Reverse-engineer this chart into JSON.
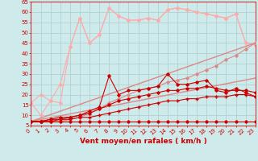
{
  "background_color": "#ceeaea",
  "grid_color": "#aacccc",
  "x_label": "Vent moyen/en rafales ( km/h )",
  "x_min": 0,
  "x_max": 23,
  "y_min": 5,
  "y_max": 65,
  "y_ticks": [
    5,
    10,
    15,
    20,
    25,
    30,
    35,
    40,
    45,
    50,
    55,
    60,
    65
  ],
  "x_ticks": [
    0,
    1,
    2,
    3,
    4,
    5,
    6,
    7,
    8,
    9,
    10,
    11,
    12,
    13,
    14,
    15,
    16,
    17,
    18,
    19,
    20,
    21,
    22,
    23
  ],
  "series": [
    {
      "x": [
        0,
        1,
        2,
        3,
        4,
        5,
        6,
        7,
        8,
        9,
        10,
        11,
        12,
        13,
        14,
        15,
        16,
        17,
        18,
        19,
        20,
        21,
        22,
        23
      ],
      "y": [
        7,
        7,
        7,
        7,
        7,
        7,
        7,
        7,
        7,
        7,
        7,
        7,
        7,
        7,
        7,
        7,
        7,
        7,
        7,
        7,
        7,
        7,
        7,
        7
      ],
      "color": "#cc0000",
      "linewidth": 0.8,
      "marker": "D",
      "markersize": 1.8,
      "zorder": 5
    },
    {
      "x": [
        0,
        1,
        2,
        3,
        4,
        5,
        6,
        7,
        8,
        9,
        10,
        11,
        12,
        13,
        14,
        15,
        16,
        17,
        18,
        19,
        20,
        21,
        22,
        23
      ],
      "y": [
        7,
        7,
        7,
        8,
        8,
        9,
        9,
        10,
        11,
        12,
        13,
        14,
        15,
        16,
        17,
        17,
        18,
        18,
        19,
        19,
        19,
        20,
        20,
        19
      ],
      "color": "#cc0000",
      "linewidth": 0.8,
      "marker": "+",
      "markersize": 3,
      "zorder": 5
    },
    {
      "x": [
        0,
        1,
        2,
        3,
        4,
        5,
        6,
        7,
        8,
        9,
        10,
        11,
        12,
        13,
        14,
        15,
        16,
        17,
        18,
        19,
        20,
        21,
        22,
        23
      ],
      "y": [
        7,
        7,
        8,
        8,
        9,
        10,
        11,
        13,
        15,
        17,
        18,
        19,
        20,
        21,
        22,
        22,
        23,
        23,
        24,
        23,
        22,
        22,
        22,
        21
      ],
      "color": "#cc0000",
      "linewidth": 0.8,
      "marker": "D",
      "markersize": 1.8,
      "zorder": 5
    },
    {
      "x": [
        0,
        1,
        2,
        3,
        4,
        5,
        6,
        7,
        8,
        9,
        10,
        11,
        12,
        13,
        14,
        15,
        16,
        17,
        18,
        19,
        20,
        21,
        22,
        23
      ],
      "y": [
        7,
        7,
        8,
        9,
        9,
        10,
        12,
        14,
        29,
        20,
        22,
        22,
        23,
        24,
        30,
        25,
        25,
        26,
        27,
        22,
        21,
        23,
        21,
        19
      ],
      "color": "#cc0000",
      "linewidth": 0.8,
      "marker": "D",
      "markersize": 1.8,
      "zorder": 4
    },
    {
      "x": [
        0,
        23
      ],
      "y": [
        7,
        45
      ],
      "color": "#dd8888",
      "linewidth": 1.0,
      "marker": null,
      "markersize": 0,
      "zorder": 3
    },
    {
      "x": [
        0,
        23
      ],
      "y": [
        7,
        28
      ],
      "color": "#dd8888",
      "linewidth": 1.0,
      "marker": null,
      "markersize": 0,
      "zorder": 3
    },
    {
      "x": [
        0,
        1,
        2,
        3,
        4,
        5,
        6,
        7,
        8,
        9,
        10,
        11,
        12,
        13,
        14,
        15,
        16,
        17,
        18,
        19,
        20,
        21,
        22,
        23
      ],
      "y": [
        7,
        7,
        7,
        7,
        8,
        9,
        11,
        13,
        16,
        18,
        20,
        22,
        23,
        24,
        26,
        27,
        28,
        30,
        32,
        34,
        37,
        39,
        42,
        45
      ],
      "color": "#dd8888",
      "linewidth": 0.8,
      "marker": "D",
      "markersize": 1.8,
      "zorder": 3
    },
    {
      "x": [
        0,
        1,
        2,
        3,
        4,
        5,
        6,
        7,
        8,
        9,
        10,
        11,
        12,
        13,
        14,
        15,
        16,
        17,
        18,
        19,
        20,
        21,
        22,
        23
      ],
      "y": [
        16,
        10,
        17,
        25,
        43,
        57,
        45,
        49,
        62,
        58,
        56,
        56,
        57,
        56,
        61,
        62,
        61,
        60,
        59,
        58,
        57,
        59,
        45,
        44
      ],
      "color": "#ffaaaa",
      "linewidth": 0.8,
      "marker": "D",
      "markersize": 1.8,
      "zorder": 2
    },
    {
      "x": [
        0,
        1,
        2,
        3,
        4,
        5,
        6,
        7,
        8,
        9,
        10,
        11,
        12,
        13,
        14,
        15,
        16,
        17,
        18,
        19,
        20,
        21,
        22,
        23
      ],
      "y": [
        16,
        20,
        17,
        16,
        43,
        57,
        45,
        49,
        62,
        58,
        56,
        56,
        57,
        56,
        61,
        62,
        61,
        60,
        59,
        58,
        57,
        59,
        45,
        44
      ],
      "color": "#ffaaaa",
      "linewidth": 0.8,
      "marker": "D",
      "markersize": 1.8,
      "zorder": 2
    }
  ],
  "tick_color": "#cc0000",
  "tick_fontsize": 5.0,
  "xlabel_fontsize": 6.5,
  "xlabel_color": "#cc0000"
}
